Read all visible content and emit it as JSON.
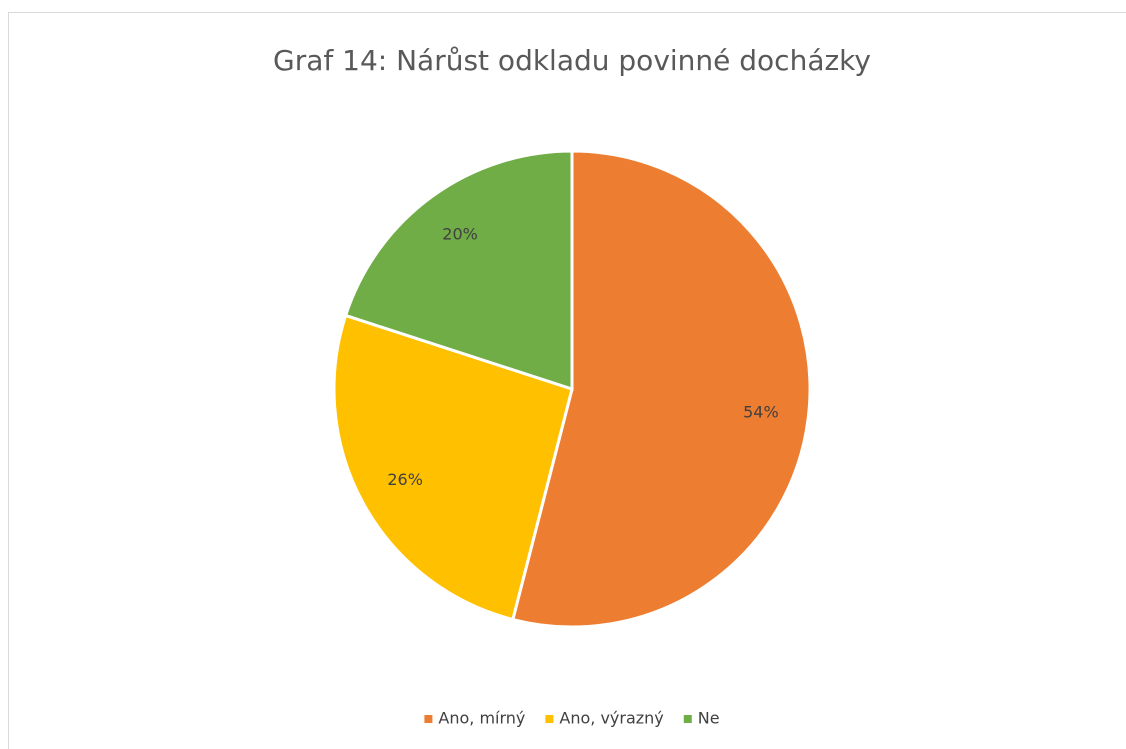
{
  "chart_data": {
    "type": "pie",
    "title": "Graf 14: Nárůst odkladu povinné docházky",
    "categories": [
      "Ano, mírný",
      "Ano, výrazný",
      "Ne"
    ],
    "values": [
      54,
      26,
      20
    ],
    "value_labels": [
      "54%",
      "26%",
      "20%"
    ],
    "colors": [
      "#ED7D31",
      "#FFC000",
      "#70AD47"
    ],
    "legend": "bottom"
  }
}
